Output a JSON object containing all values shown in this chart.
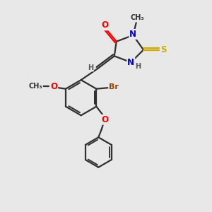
{
  "bg_color": "#e8e8e8",
  "bond_color": "#303030",
  "bond_lw": 1.6,
  "atom_colors": {
    "O": "#ff0000",
    "N": "#0000cc",
    "S": "#ccaa00",
    "Br": "#994400",
    "C": "#303030",
    "H": "#555555"
  },
  "font_size": 8.5
}
